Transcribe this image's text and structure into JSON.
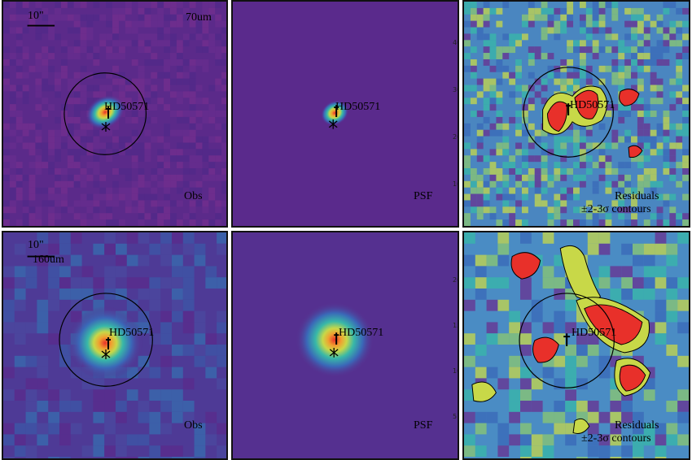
{
  "scale_bar": "10\"",
  "star_name": "HD50571",
  "rows": [
    {
      "band": "70um",
      "obs_label": "Obs",
      "psf_label": "PSF",
      "residual_label": "Residuals",
      "contour_label": "±2-3σ contours",
      "psf_ticks": [
        "40",
        "30",
        "20",
        "10"
      ]
    },
    {
      "band": "160um",
      "obs_label": "Obs",
      "psf_label": "PSF",
      "residual_label": "Residuals",
      "contour_label": "±2-3σ contours",
      "psf_ticks": [
        "20",
        "15",
        "10",
        "5"
      ]
    }
  ],
  "colors": {
    "background": "#5b2a8a",
    "peak": "#e8302a",
    "contour": "#000000"
  }
}
